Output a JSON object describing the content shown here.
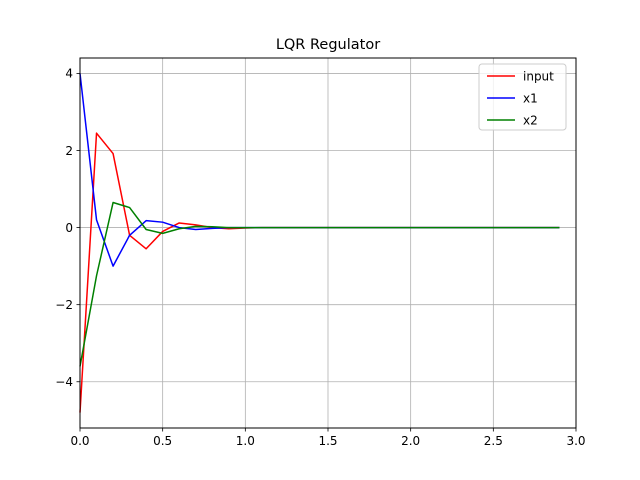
{
  "chart_data": {
    "type": "line",
    "title": "LQR Regulator",
    "xlabel": "",
    "ylabel": "",
    "xlim": [
      0.0,
      3.0
    ],
    "ylim": [
      -5.2,
      4.4
    ],
    "xticks": [
      0.0,
      0.5,
      1.0,
      1.5,
      2.0,
      2.5,
      3.0
    ],
    "xtick_labels": [
      "0.0",
      "0.5",
      "1.0",
      "1.5",
      "2.0",
      "2.5",
      "3.0"
    ],
    "yticks": [
      -4,
      -2,
      0,
      2,
      4
    ],
    "ytick_labels": [
      "−4",
      "−2",
      "0",
      "2",
      "4"
    ],
    "grid": true,
    "legend_position": "top-right",
    "x": [
      0.0,
      0.1,
      0.2,
      0.3,
      0.4,
      0.5,
      0.6,
      0.7,
      0.8,
      0.9,
      1.0,
      1.1,
      1.2,
      1.3,
      1.4,
      1.5,
      1.6,
      1.7,
      1.8,
      1.9,
      2.0,
      2.1,
      2.2,
      2.3,
      2.4,
      2.5,
      2.6,
      2.7,
      2.8,
      2.9
    ],
    "series": [
      {
        "name": "input",
        "color": "#ff0000",
        "values": [
          -4.8,
          2.45,
          1.92,
          -0.2,
          -0.55,
          -0.1,
          0.12,
          0.07,
          0.0,
          -0.03,
          -0.01,
          0.0,
          0.0,
          0.0,
          0.0,
          0.0,
          0.0,
          0.0,
          0.0,
          0.0,
          0.0,
          0.0,
          0.0,
          0.0,
          0.0,
          0.0,
          0.0,
          0.0,
          0.0,
          0.0
        ]
      },
      {
        "name": "x1",
        "color": "#0000ff",
        "values": [
          4.0,
          0.2,
          -1.0,
          -0.2,
          0.18,
          0.14,
          0.0,
          -0.05,
          -0.02,
          0.0,
          0.0,
          0.0,
          0.0,
          0.0,
          0.0,
          0.0,
          0.0,
          0.0,
          0.0,
          0.0,
          0.0,
          0.0,
          0.0,
          0.0,
          0.0,
          0.0,
          0.0,
          0.0,
          0.0,
          0.0
        ]
      },
      {
        "name": "x2",
        "color": "#008000",
        "values": [
          -3.6,
          -1.25,
          0.65,
          0.52,
          -0.05,
          -0.15,
          -0.03,
          0.03,
          0.02,
          0.0,
          0.0,
          0.0,
          0.0,
          0.0,
          0.0,
          0.0,
          0.0,
          0.0,
          0.0,
          0.0,
          0.0,
          0.0,
          0.0,
          0.0,
          0.0,
          0.0,
          0.0,
          0.0,
          0.0,
          0.0
        ]
      }
    ]
  }
}
